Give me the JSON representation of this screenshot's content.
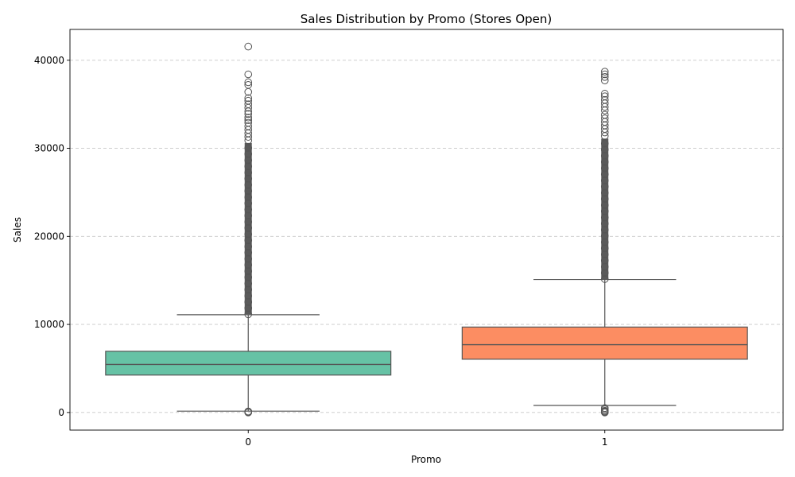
{
  "chart_data": {
    "type": "boxplot",
    "title": "Sales Distribution by Promo (Stores Open)",
    "xlabel": "Promo",
    "ylabel": "Sales",
    "ylim": [
      -2000,
      43500
    ],
    "yticks": [
      0,
      10000,
      20000,
      30000,
      40000
    ],
    "ytick_labels": [
      "0",
      "10000",
      "20000",
      "30000",
      "40000"
    ],
    "grid": "horizontal-dashed",
    "categories": [
      "0",
      "1"
    ],
    "boxes": [
      {
        "category": "0",
        "color": "#66c2a5",
        "whisker_low": 150,
        "q1": 4250,
        "median": 5450,
        "q3": 6950,
        "whisker_high": 11100,
        "outliers_low": [
          0,
          30,
          60,
          90,
          120
        ],
        "outliers_high_dense_range": [
          11150,
          30600
        ],
        "outliers_high": [
          30900,
          31300,
          31700,
          32100,
          32500,
          32900,
          33200,
          33500,
          33900,
          34200,
          34600,
          35000,
          35400,
          35700,
          36400,
          37200,
          37500,
          38400,
          41550
        ]
      },
      {
        "category": "1",
        "color": "#fc8d62",
        "whisker_low": 800,
        "q1": 6050,
        "median": 7700,
        "q3": 9700,
        "whisker_high": 15100,
        "outliers_low": [
          0,
          40,
          80,
          120,
          200,
          350,
          500
        ],
        "outliers_high_dense_range": [
          15150,
          31100
        ],
        "outliers_high": [
          31400,
          31800,
          32200,
          32600,
          33000,
          33400,
          33800,
          34300,
          34700,
          35100,
          35500,
          35900,
          36200,
          37700,
          38100,
          38400,
          38700
        ]
      }
    ]
  }
}
